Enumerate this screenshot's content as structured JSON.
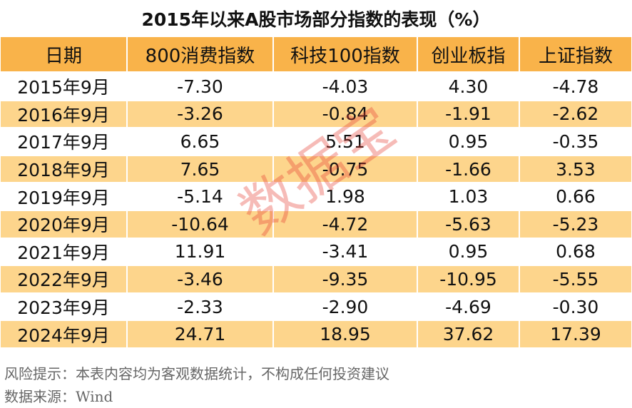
{
  "title": "2015年以来A股市场部分指数的表现（%）",
  "table": {
    "header": [
      "日期",
      "800消费指数",
      "科技100指数",
      "创业板指",
      "上证指数"
    ],
    "rows": [
      [
        "2015年9月",
        "-7.30",
        "-4.03",
        "4.30",
        "-4.78"
      ],
      [
        "2016年9月",
        "-3.26",
        "-0.84",
        "-1.91",
        "-2.62"
      ],
      [
        "2017年9月",
        "6.65",
        "5.51",
        "0.95",
        "-0.35"
      ],
      [
        "2018年9月",
        "7.65",
        "-0.75",
        "-1.66",
        "3.53"
      ],
      [
        "2019年9月",
        "-5.14",
        "1.98",
        "1.03",
        "0.66"
      ],
      [
        "2020年9月",
        "-10.64",
        "-4.72",
        "-5.63",
        "-5.23"
      ],
      [
        "2021年9月",
        "11.91",
        "-3.41",
        "0.95",
        "0.68"
      ],
      [
        "2022年9月",
        "-3.46",
        "-9.35",
        "-10.95",
        "-5.55"
      ],
      [
        "2023年9月",
        "-2.33",
        "-2.90",
        "-4.69",
        "-0.30"
      ],
      [
        "2024年9月",
        "24.71",
        "18.95",
        "37.62",
        "17.39"
      ]
    ]
  },
  "footer": {
    "risk": "风险提示：本表内容均为客观数据统计，不构成任何投资建议",
    "source": "数据来源：Wind"
  },
  "watermark": "数据宝"
}
